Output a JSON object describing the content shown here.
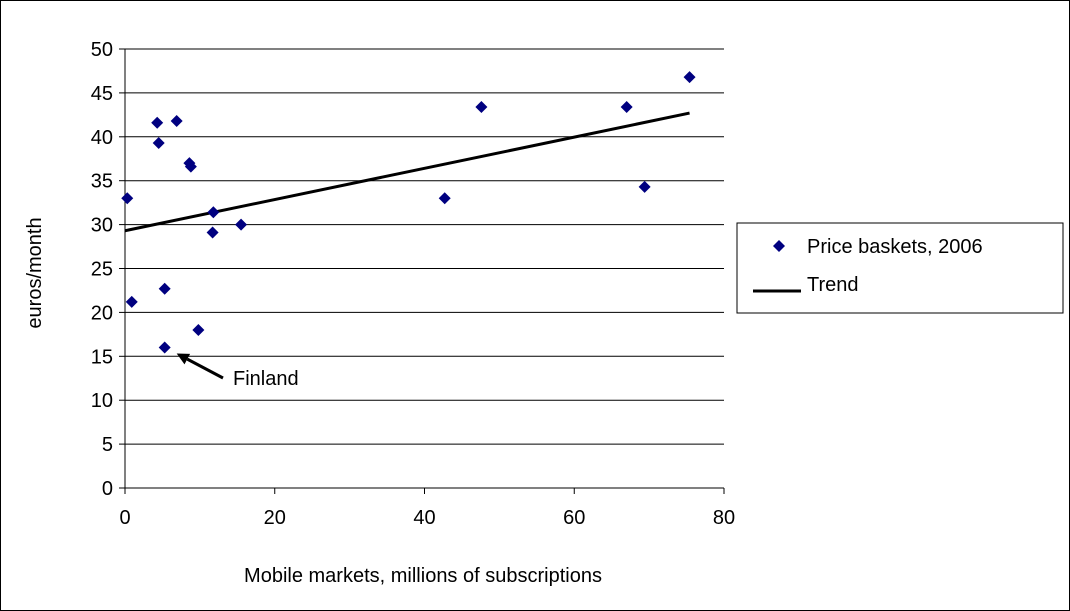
{
  "chart_data": {
    "type": "scatter",
    "xlabel": "Mobile markets, millions of subscriptions",
    "ylabel": "euros/month",
    "xlim": [
      0,
      80
    ],
    "ylim": [
      0,
      50
    ],
    "xticks": [
      "0",
      "20",
      "40",
      "60",
      "80"
    ],
    "yticks": [
      "0",
      "5",
      "10",
      "15",
      "20",
      "25",
      "30",
      "35",
      "40",
      "45",
      "50"
    ],
    "grid": "horizontal",
    "legend_position": "right",
    "legend": [
      "Price baskets, 2006",
      "Trend"
    ],
    "marker_color": "#000080",
    "series": [
      {
        "name": "Price baskets, 2006",
        "points": [
          [
            0.3,
            33.0
          ],
          [
            0.9,
            21.2
          ],
          [
            4.3,
            41.6
          ],
          [
            4.5,
            39.3
          ],
          [
            5.3,
            22.7
          ],
          [
            5.3,
            16.0
          ],
          [
            6.9,
            41.8
          ],
          [
            8.6,
            37.0
          ],
          [
            8.8,
            36.6
          ],
          [
            9.8,
            18.0
          ],
          [
            11.7,
            29.1
          ],
          [
            11.8,
            31.4
          ],
          [
            15.5,
            30.0
          ],
          [
            42.7,
            33.0
          ],
          [
            47.6,
            43.4
          ],
          [
            67.0,
            43.4
          ],
          [
            69.4,
            34.3
          ],
          [
            75.4,
            46.8
          ]
        ]
      },
      {
        "name": "Trend",
        "line": [
          [
            0,
            29.3
          ],
          [
            75.4,
            42.7
          ]
        ]
      }
    ],
    "annotations": [
      {
        "text": "Finland",
        "target": [
          5.3,
          16.0
        ]
      }
    ]
  }
}
